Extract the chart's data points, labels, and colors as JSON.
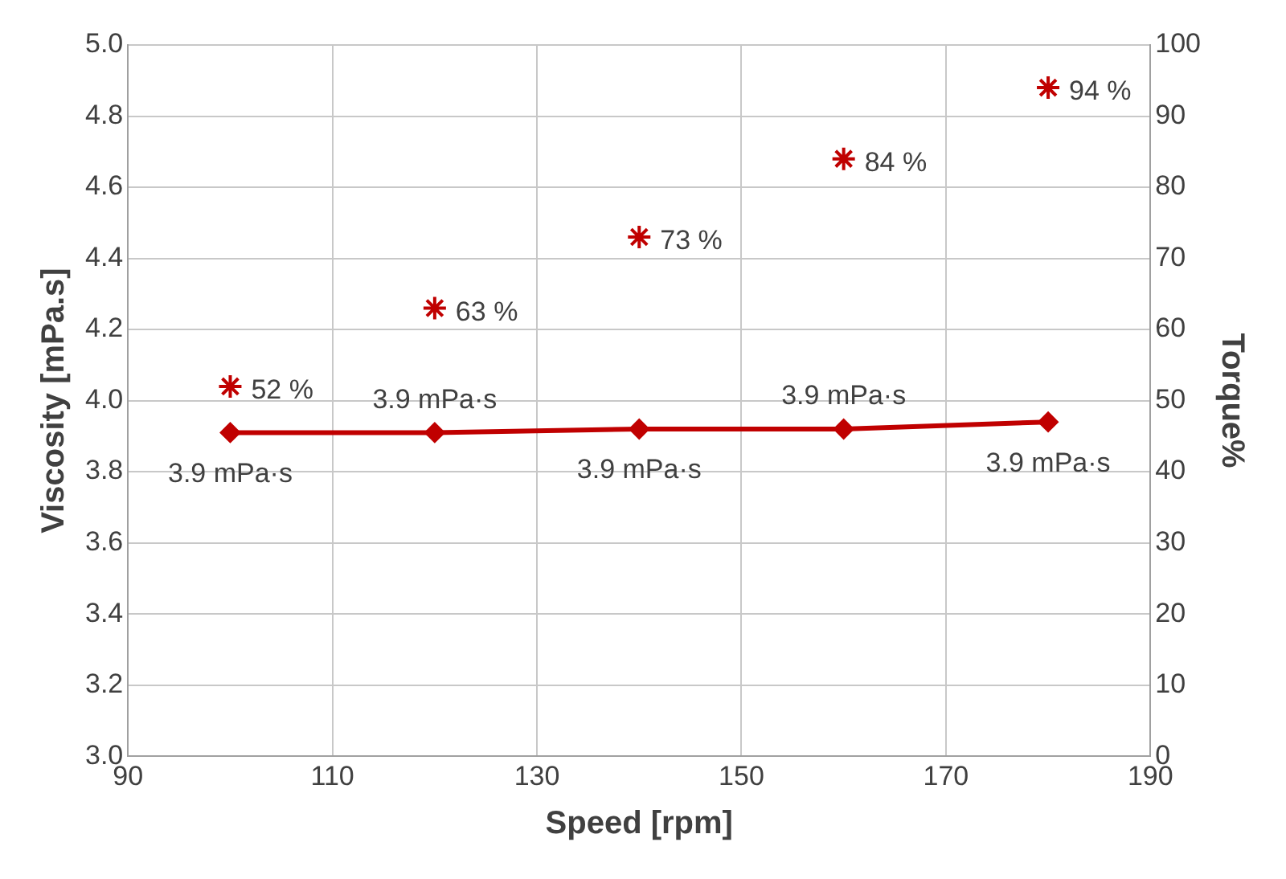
{
  "chart_data": {
    "type": "line",
    "xlabel": "Speed [rpm]",
    "ylabel": "Viscosity [mPa.s]",
    "y2label": "Torque%",
    "x": [
      100,
      120,
      140,
      160,
      180
    ],
    "series": [
      {
        "type": "line",
        "color": "#c00000",
        "marker": "diamond",
        "line_style": "solid",
        "values": [
          3.91,
          3.91,
          3.92,
          3.92,
          3.94
        ],
        "value_labels": [
          "3.9 mPa·s",
          "3.9 mPa·s",
          "3.9 mPa·s",
          "3.9 mPa·s",
          "3.9 mPa·s"
        ]
      },
      {
        "type": "scatter",
        "axis": "y2",
        "color": "#c00000",
        "marker": "cross",
        "values": [
          52,
          63,
          73,
          84,
          94
        ],
        "value_labels": [
          "52 %",
          "63 %",
          "73 %",
          "84 %",
          "94 %"
        ]
      }
    ],
    "xlim": [
      90,
      190
    ],
    "xticks": [
      90,
      110,
      130,
      150,
      170,
      190
    ],
    "ylim": [
      3.0,
      5.0
    ],
    "yticks": [
      {
        "value": 3.0,
        "label": "3.0"
      },
      3.2,
      3.4,
      3.6,
      3.8,
      {
        "value": 4.0,
        "label": "4.0"
      },
      4.2,
      4.4,
      4.6,
      4.8,
      {
        "value": 5.0,
        "label": "5.0"
      }
    ],
    "y2lim": [
      0,
      100
    ],
    "y2ticks": [
      0,
      10,
      20,
      30,
      40,
      50,
      60,
      70,
      80,
      90,
      100
    ],
    "grid": true,
    "legend": false
  }
}
